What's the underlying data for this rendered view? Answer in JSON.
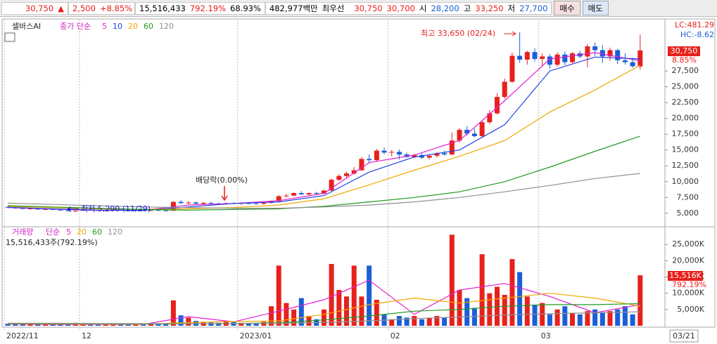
{
  "header": {
    "price": "30,750",
    "arrow": "▲",
    "change": "2,500",
    "pct": "+8.85%",
    "volume": "15,516,433",
    "vol_ratio": "792.19%",
    "turnover": "68.93%",
    "amount": "482,977백만",
    "best_label": "최우선",
    "ask": "30,750",
    "bid": "30,700",
    "open_label": "시",
    "open": "28,200",
    "high_label": "고",
    "high": "33,250",
    "low_label": "저",
    "low": "27,700",
    "buy": "매수",
    "sell": "매도"
  },
  "chart_data": [
    {
      "type": "candlestick",
      "name": "셀바스AI",
      "ma_label": "종가 단순",
      "open": [
        6000,
        5900,
        5800,
        5700,
        5750,
        5600,
        5650,
        5550,
        5450,
        5350,
        5400,
        5550,
        5500,
        5450,
        5500,
        5600,
        5500,
        5450,
        5500,
        5450,
        5500,
        5450,
        5400,
        6800,
        6600,
        6700,
        6500,
        6650,
        6550,
        6450,
        6600,
        6500,
        6600,
        6550,
        6500,
        6650,
        6900,
        7700,
        7800,
        8200,
        8000,
        8200,
        8100,
        8600,
        10300,
        10900,
        11300,
        11800,
        13600,
        13400,
        14900,
        14600,
        14700,
        14300,
        13900,
        14200,
        13800,
        14100,
        14500,
        14300,
        16500,
        18200,
        17600,
        17200,
        19400,
        20800,
        23400,
        25800,
        29900,
        29300,
        30500,
        29400,
        29800,
        28500,
        30100,
        28900,
        30300,
        29800,
        31400,
        30800,
        29800,
        30800,
        29200,
        28900,
        28200
      ],
      "high": [
        6100,
        6000,
        5900,
        5850,
        5800,
        5700,
        5750,
        5650,
        5550,
        5450,
        5600,
        5650,
        5600,
        5550,
        5650,
        5700,
        5600,
        5550,
        5600,
        5550,
        5600,
        5550,
        6900,
        7100,
        6900,
        6850,
        6800,
        6800,
        6700,
        6700,
        6750,
        6700,
        6750,
        6650,
        6700,
        7000,
        7900,
        8100,
        8300,
        8500,
        8300,
        8400,
        8700,
        10500,
        11200,
        11600,
        12300,
        13900,
        14300,
        15200,
        15400,
        15000,
        15100,
        14600,
        14400,
        14500,
        14300,
        14700,
        14900,
        17800,
        18500,
        18800,
        18400,
        19700,
        21300,
        24000,
        26300,
        30400,
        33650,
        30700,
        31100,
        30300,
        30200,
        30500,
        30600,
        30500,
        30700,
        31800,
        32000,
        31600,
        31200,
        31000,
        30300,
        29600,
        33250
      ],
      "low": [
        5800,
        5700,
        5650,
        5600,
        5550,
        5500,
        5500,
        5400,
        5300,
        5200,
        5350,
        5450,
        5400,
        5350,
        5450,
        5450,
        5400,
        5350,
        5400,
        5350,
        5400,
        5350,
        5400,
        6500,
        6400,
        6450,
        6400,
        6450,
        6350,
        6400,
        6450,
        6400,
        6450,
        6400,
        6400,
        6550,
        6850,
        7500,
        7700,
        7900,
        7800,
        7900,
        8000,
        8500,
        10100,
        10500,
        11100,
        11700,
        12900,
        13200,
        14300,
        14000,
        13500,
        13800,
        13700,
        13600,
        13500,
        13800,
        14100,
        14200,
        16200,
        17300,
        17000,
        17000,
        19100,
        20600,
        23100,
        25600,
        28800,
        28500,
        29000,
        28300,
        27900,
        28200,
        28400,
        28700,
        29500,
        28100,
        29900,
        28800,
        29100,
        28600,
        28500,
        28000,
        27700
      ],
      "close": [
        5900,
        5800,
        5700,
        5750,
        5600,
        5650,
        5550,
        5450,
        5350,
        5400,
        5550,
        5500,
        5450,
        5500,
        5600,
        5500,
        5450,
        5500,
        5450,
        5500,
        5450,
        5400,
        6800,
        6600,
        6700,
        6500,
        6650,
        6550,
        6450,
        6600,
        6500,
        6600,
        6550,
        6500,
        6650,
        6900,
        7700,
        7800,
        8200,
        8000,
        8200,
        8100,
        8600,
        10300,
        10900,
        11300,
        11800,
        13600,
        13400,
        14900,
        14600,
        14700,
        14300,
        13900,
        14200,
        13800,
        14100,
        14500,
        14300,
        16500,
        18200,
        17600,
        17200,
        19400,
        20800,
        23400,
        25800,
        29900,
        29300,
        30500,
        29400,
        29800,
        28500,
        30100,
        28900,
        30300,
        29800,
        31400,
        30800,
        29800,
        30800,
        29200,
        28900,
        28250,
        30750
      ],
      "up_color": "#e8201c",
      "down_color": "#1a5fd8",
      "ma_x": [
        0,
        6,
        12,
        18,
        24,
        30,
        36,
        42,
        48,
        54,
        60,
        66,
        72,
        78,
        84
      ],
      "ma": [
        {
          "name": "5",
          "color": "#e020d0",
          "values": [
            5900,
            5650,
            5480,
            5480,
            6300,
            6550,
            7000,
            8150,
            13000,
            14200,
            16500,
            22800,
            29400,
            30400,
            29100
          ]
        },
        {
          "name": "10",
          "color": "#2040e0",
          "values": [
            5950,
            5700,
            5500,
            5480,
            6000,
            6550,
            6800,
            7800,
            11500,
            13900,
            15000,
            19000,
            27500,
            29700,
            29400
          ]
        },
        {
          "name": "20",
          "color": "#f0a800",
          "values": [
            6100,
            5900,
            5700,
            5600,
            5700,
            5900,
            6300,
            7300,
            9500,
            11800,
            14000,
            16500,
            21000,
            24500,
            28400
          ]
        },
        {
          "name": "60",
          "color": "#209a20",
          "values": [
            6200,
            6000,
            5800,
            5600,
            5500,
            5600,
            5700,
            6100,
            6800,
            7500,
            8400,
            10000,
            12300,
            14800,
            17200
          ]
        },
        {
          "name": "120",
          "color": "#909090",
          "values": [
            6600,
            6400,
            6200,
            6000,
            5900,
            5800,
            5800,
            6000,
            6300,
            6800,
            7500,
            8400,
            9400,
            10500,
            11300
          ]
        }
      ],
      "ylim": [
        3200,
        35400
      ],
      "yticks": [
        {
          "value": 5000,
          "label": "5,000"
        },
        {
          "value": 7500,
          "label": "7,500"
        },
        {
          "value": 10000,
          "label": "10,000"
        },
        {
          "value": 12500,
          "label": "12,500"
        },
        {
          "value": 15000,
          "label": "15,000"
        },
        {
          "value": 17500,
          "label": "17,500"
        },
        {
          "value": 20000,
          "label": "20,000"
        },
        {
          "value": 22500,
          "label": "22,500"
        },
        {
          "value": 25000,
          "label": "25,000"
        },
        {
          "value": 27500,
          "label": "27,500"
        }
      ],
      "annotations": [
        "최고 33,650 (02/24)",
        "최저 5,200 (11/29)",
        "배당락(0.00%)"
      ],
      "info": {
        "lc": "LC:481.29",
        "hc": "HC:-8.62",
        "price": "30,750",
        "change": "8.85%"
      }
    },
    {
      "type": "bar",
      "name": "거래량",
      "ma_label": "단순",
      "summary": "15,516,433주(792.19%)",
      "categories": [
        "2022/11",
        null,
        null,
        null,
        null,
        null,
        null,
        null,
        null,
        null,
        "12",
        null,
        null,
        null,
        null,
        null,
        null,
        null,
        null,
        null,
        null,
        null,
        null,
        null,
        null,
        null,
        null,
        null,
        null,
        null,
        null,
        "2023/01",
        null,
        null,
        null,
        null,
        null,
        null,
        null,
        null,
        null,
        null,
        null,
        null,
        null,
        null,
        null,
        null,
        null,
        null,
        null,
        "02",
        null,
        null,
        null,
        null,
        null,
        null,
        null,
        null,
        null,
        null,
        null,
        null,
        null,
        null,
        null,
        null,
        null,
        null,
        null,
        "03",
        null,
        null,
        null,
        null,
        null,
        null,
        null,
        null,
        null,
        null,
        null,
        null,
        null
      ],
      "cursor_date": "03/21",
      "values": [
        600,
        500,
        400,
        450,
        700,
        500,
        400,
        600,
        800,
        900,
        500,
        400,
        350,
        400,
        500,
        450,
        400,
        350,
        400,
        450,
        400,
        500,
        7800,
        3200,
        2500,
        1500,
        1200,
        1000,
        900,
        1400,
        1100,
        900,
        800,
        700,
        1200,
        6000,
        18500,
        7000,
        5000,
        8500,
        3000,
        2000,
        5000,
        19000,
        11000,
        9000,
        18500,
        9000,
        18500,
        8000,
        3500,
        2000,
        3000,
        2500,
        3000,
        2000,
        2500,
        3000,
        2500,
        28000,
        11000,
        8500,
        5500,
        22000,
        10000,
        12000,
        9500,
        20500,
        16500,
        9000,
        6500,
        7000,
        3500,
        5000,
        6000,
        4000,
        3500,
        4500,
        5000,
        4000,
        4500,
        5000,
        6000,
        3500,
        15516
      ],
      "ma_x": [
        0,
        6,
        12,
        18,
        24,
        30,
        36,
        42,
        48,
        54,
        60,
        66,
        72,
        78,
        84
      ],
      "ma": [
        {
          "name": "5",
          "color": "#e020d0",
          "values": [
            500,
            400,
            400,
            400,
            2800,
            1200,
            4500,
            8000,
            14000,
            3500,
            11000,
            13000,
            9000,
            4000,
            6500
          ]
        },
        {
          "name": "20",
          "color": "#f0a800",
          "values": [
            600,
            550,
            500,
            450,
            1000,
            1300,
            1500,
            3500,
            6500,
            8500,
            7000,
            8500,
            10000,
            8500,
            6000
          ]
        },
        {
          "name": "60",
          "color": "#209a20",
          "values": [
            700,
            650,
            600,
            550,
            600,
            700,
            900,
            1800,
            3000,
            4500,
            5000,
            6000,
            6500,
            6500,
            6800
          ]
        },
        {
          "name": "120",
          "color": "#909090",
          "values": [
            800,
            750,
            700,
            650,
            650,
            700,
            750,
            1000,
            1500,
            2200,
            2700,
            3300,
            3700,
            4000,
            4300
          ]
        }
      ],
      "ylim": [
        0,
        29800
      ],
      "yticks": [
        {
          "value": 5000,
          "label": "5,000K"
        },
        {
          "value": 10000,
          "label": "10,000K"
        },
        {
          "value": 15000,
          "label": "15,000K"
        },
        {
          "value": 20000,
          "label": "20,000K"
        },
        {
          "value": 25000,
          "label": "25,000K"
        }
      ],
      "last_label": "15,516K",
      "last_pct": "792.19%"
    }
  ]
}
